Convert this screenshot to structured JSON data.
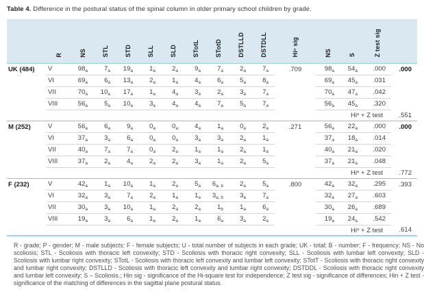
{
  "title": {
    "label": "Table 4.",
    "text": " Difference in the postural status of the spinal column in older primary school children by grade."
  },
  "colors": {
    "header_bg": "#d9e8f1",
    "header_rule": "#9ecde0",
    "row_rule": "#d4d4d4",
    "group_rule": "#b3b3b3",
    "bottom_rule": "#a2d0e2"
  },
  "table": {
    "headers": [
      "R",
      "NS",
      "STL",
      "STD",
      "SLL",
      "SLD",
      "STotL",
      "STotD",
      "DSTLLD",
      "DSTDLL",
      "Hiⁿ sig",
      "NS",
      "S",
      "Z test sig"
    ],
    "groups": [
      {
        "label": "UK (484)",
        "hi_sig": ".709",
        "group_z_sig": ".000",
        "group_z_bold": true,
        "rows": [
          {
            "grade": "V",
            "cells": [
              {
                "v": "98",
                "s": "a"
              },
              {
                "v": "7",
                "s": "a"
              },
              {
                "v": "19",
                "s": "a"
              },
              {
                "v": "1",
                "s": "a"
              },
              {
                "v": "2",
                "s": "a"
              },
              {
                "v": "9",
                "s": "a"
              },
              {
                "v": "7",
                "s": "a"
              },
              {
                "v": "2",
                "s": "a"
              },
              {
                "v": "7",
                "s": "a"
              }
            ],
            "ns": {
              "v": "98",
              "s": "a"
            },
            "s": {
              "v": "54",
              "s": "a"
            },
            "z": ".000"
          },
          {
            "grade": "VI",
            "cells": [
              {
                "v": "69",
                "s": "a"
              },
              {
                "v": "6",
                "s": "a"
              },
              {
                "v": "13",
                "s": "a"
              },
              {
                "v": "2",
                "s": "a"
              },
              {
                "v": "1",
                "s": "a"
              },
              {
                "v": "4",
                "s": "a"
              },
              {
                "v": "6",
                "s": "a"
              },
              {
                "v": "5",
                "s": "a"
              },
              {
                "v": "8",
                "s": "a"
              }
            ],
            "ns": {
              "v": "69",
              "s": "a"
            },
            "s": {
              "v": "45",
              "s": "a"
            },
            "z": ".031"
          },
          {
            "grade": "VII",
            "cells": [
              {
                "v": "70",
                "s": "a"
              },
              {
                "v": "10",
                "s": "a"
              },
              {
                "v": "17",
                "s": "a"
              },
              {
                "v": "1",
                "s": "a"
              },
              {
                "v": "4",
                "s": "a"
              },
              {
                "v": "3",
                "s": "a"
              },
              {
                "v": "2",
                "s": "a"
              },
              {
                "v": "3",
                "s": "a"
              },
              {
                "v": "7",
                "s": "a"
              }
            ],
            "ns": {
              "v": "70",
              "s": "a"
            },
            "s": {
              "v": "47",
              "s": "a"
            },
            "z": ".042"
          },
          {
            "grade": "VIII",
            "cells": [
              {
                "v": "56",
                "s": "a"
              },
              {
                "v": "5",
                "s": "a"
              },
              {
                "v": "10",
                "s": "a"
              },
              {
                "v": "3",
                "s": "a"
              },
              {
                "v": "4",
                "s": "a"
              },
              {
                "v": "4",
                "s": "a"
              },
              {
                "v": "7",
                "s": "a"
              },
              {
                "v": "5",
                "s": "a"
              },
              {
                "v": "7",
                "s": "a"
              }
            ],
            "ns": {
              "v": "56",
              "s": "a"
            },
            "s": {
              "v": "45",
              "s": "a"
            },
            "z": ".320"
          }
        ],
        "summary": {
          "label": "Hiⁿ + Z test",
          "value": ".551"
        }
      },
      {
        "label": "M (252)",
        "hi_sig": ".271",
        "group_z_sig": ".000",
        "group_z_bold": true,
        "rows": [
          {
            "grade": "V",
            "cells": [
              {
                "v": "56",
                "s": "a"
              },
              {
                "v": "6",
                "s": "a"
              },
              {
                "v": "9",
                "s": "a"
              },
              {
                "v": "0",
                "s": "a"
              },
              {
                "v": "0",
                "s": "a"
              },
              {
                "v": "4",
                "s": "a"
              },
              {
                "v": "1",
                "s": "a"
              },
              {
                "v": "0",
                "s": "a"
              },
              {
                "v": "2",
                "s": "a"
              }
            ],
            "ns": {
              "v": "56",
              "s": "a"
            },
            "s": {
              "v": "22",
              "s": "a"
            },
            "z": ".000"
          },
          {
            "grade": "VI",
            "cells": [
              {
                "v": "37",
                "s": "a"
              },
              {
                "v": "3",
                "s": "a"
              },
              {
                "v": "6",
                "s": "a"
              },
              {
                "v": "0",
                "s": "a"
              },
              {
                "v": "0",
                "s": "a"
              },
              {
                "v": "3",
                "s": "a"
              },
              {
                "v": "3",
                "s": "a"
              },
              {
                "v": "2",
                "s": "a"
              },
              {
                "v": "1",
                "s": "a"
              }
            ],
            "ns": {
              "v": "37",
              "s": "a"
            },
            "s": {
              "v": "18",
              "s": "a"
            },
            "z": ".014"
          },
          {
            "grade": "VII",
            "cells": [
              {
                "v": "40",
                "s": "a"
              },
              {
                "v": "7",
                "s": "a"
              },
              {
                "v": "7",
                "s": "a"
              },
              {
                "v": "0",
                "s": "a"
              },
              {
                "v": "2",
                "s": "a"
              },
              {
                "v": "1",
                "s": "a"
              },
              {
                "v": "1",
                "s": "a"
              },
              {
                "v": "2",
                "s": "a"
              },
              {
                "v": "1",
                "s": "a"
              }
            ],
            "ns": {
              "v": "40",
              "s": "a"
            },
            "s": {
              "v": "21",
              "s": "a"
            },
            "z": ".020"
          },
          {
            "grade": "VIII",
            "cells": [
              {
                "v": "37",
                "s": "a"
              },
              {
                "v": "2",
                "s": "a"
              },
              {
                "v": "4",
                "s": "a"
              },
              {
                "v": "2",
                "s": "a"
              },
              {
                "v": "2",
                "s": "a"
              },
              {
                "v": "3",
                "s": "a"
              },
              {
                "v": "1",
                "s": "a"
              },
              {
                "v": "2",
                "s": "a"
              },
              {
                "v": "5",
                "s": "a"
              }
            ],
            "ns": {
              "v": "37",
              "s": "a"
            },
            "s": {
              "v": "21",
              "s": "a"
            },
            "z": ".048"
          }
        ],
        "summary": {
          "label": "Hiⁿ + Z test",
          "value": ".772"
        }
      },
      {
        "label": "F (232)",
        "hi_sig": ".800",
        "group_z_sig": ".393",
        "group_z_bold": false,
        "rows": [
          {
            "grade": "V",
            "cells": [
              {
                "v": "42",
                "s": "a"
              },
              {
                "v": "1",
                "s": "a"
              },
              {
                "v": "10",
                "s": "a"
              },
              {
                "v": "1",
                "s": "a"
              },
              {
                "v": "2",
                "s": "a"
              },
              {
                "v": "5",
                "s": "a"
              },
              {
                "v": "6",
                "s": "a, b"
              },
              {
                "v": "2",
                "s": "a"
              },
              {
                "v": "5",
                "s": "a"
              }
            ],
            "ns": {
              "v": "42",
              "s": "a"
            },
            "s": {
              "v": "32",
              "s": "a"
            },
            "z": ".295"
          },
          {
            "grade": "VI",
            "cells": [
              {
                "v": "32",
                "s": "a"
              },
              {
                "v": "3",
                "s": "a"
              },
              {
                "v": "7",
                "s": "a"
              },
              {
                "v": "2",
                "s": "a"
              },
              {
                "v": "1",
                "s": "a"
              },
              {
                "v": "1",
                "s": "a"
              },
              {
                "v": "3",
                "s": "a, b"
              },
              {
                "v": "3",
                "s": "a"
              },
              {
                "v": "7",
                "s": "a"
              }
            ],
            "ns": {
              "v": "32",
              "s": "a"
            },
            "s": {
              "v": "27",
              "s": "a"
            },
            "z": ".603"
          },
          {
            "grade": "VII",
            "cells": [
              {
                "v": "30",
                "s": "a"
              },
              {
                "v": "3",
                "s": "a"
              },
              {
                "v": "10",
                "s": "a"
              },
              {
                "v": "1",
                "s": "a"
              },
              {
                "v": "2",
                "s": "a"
              },
              {
                "v": "2",
                "s": "a"
              },
              {
                "v": "1",
                "s": "b"
              },
              {
                "v": "1",
                "s": "a"
              },
              {
                "v": "6",
                "s": "a"
              }
            ],
            "ns": {
              "v": "30",
              "s": "a"
            },
            "s": {
              "v": "26",
              "s": "a"
            },
            "z": ".689"
          },
          {
            "grade": "VIII",
            "cells": [
              {
                "v": "19",
                "s": "a"
              },
              {
                "v": "3",
                "s": "a"
              },
              {
                "v": "6",
                "s": "a"
              },
              {
                "v": "1",
                "s": "a"
              },
              {
                "v": "2",
                "s": "a"
              },
              {
                "v": "1",
                "s": "a"
              },
              {
                "v": "6",
                "s": "a"
              },
              {
                "v": "3",
                "s": "a"
              },
              {
                "v": "2",
                "s": "a"
              }
            ],
            "ns": {
              "v": "19",
              "s": "a"
            },
            "s": {
              "v": "24",
              "s": "a"
            },
            "z": ".542"
          }
        ],
        "summary": {
          "label": "Hiⁿ + Z test",
          "value": ".614"
        }
      }
    ]
  },
  "footnote": "R - grade; P - gender; M - male subjects; F - female subjects; U - total number of subjects in each grade; UK - total; B - number; F - frequency; NS - No scoliosis; STL - Scoliosis with thoracic left convexity; STD - Scoliosis with thoracic right convexity; SLL - Scoliosis with lumbar left convexity; SLD - Scoliosis with lumbar right convexity; STotL - Scoliosis with thoracic left convexity and lumbar left convexity; STotT - Scoliosis with thoracic right convexity and lumbar right convexity; DSTLLD - Scoliosis with thoracic left convexity and lumbar right convexity; DSTDDL - Scoliosis with thoracic right convexity and lumbar left convexity; S – Scoliosis.; Hin sig - significance of the Hi-square test for independence; Z test sig - significance of differences; Hin + Z test - significance of the matching of differences in the sagittal plane postural status."
}
